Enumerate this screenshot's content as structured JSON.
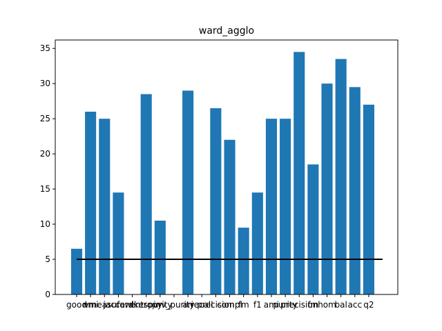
{
  "chart_data": {
    "type": "bar",
    "title": "ward_agglo",
    "xlabel": "",
    "ylabel": "",
    "ylim": [
      0,
      36.2
    ],
    "yticks": [
      0,
      5,
      10,
      15,
      20,
      25,
      30,
      35
    ],
    "categories": [
      "good",
      "nmi",
      "ami",
      "jaccard",
      "fowlkes",
      "entropy",
      "purity",
      "inv_purity",
      "ari",
      "recall",
      "precision",
      "comp",
      "fm",
      "f1",
      "ami2",
      "purity2",
      "precision2",
      "fm2",
      "hom",
      "bal",
      "comp2",
      "q2"
    ],
    "xtick_labels": [
      "good",
      "nmi",
      "vmeasure",
      "jaccard",
      "fowlkes",
      "entropy",
      "purity",
      "inv_purity",
      "ari",
      "recall",
      "precision",
      "compl",
      "fm",
      "f1",
      "ami",
      "purity",
      "precision",
      "fm",
      "hom",
      "bal",
      "acc",
      "q2"
    ],
    "values": [
      6.5,
      26,
      25,
      14.5,
      0,
      28.5,
      10.5,
      0,
      29,
      0,
      26.5,
      22,
      9.5,
      14.5,
      25,
      25,
      34.5,
      18.5,
      30,
      33.5,
      29.5,
      27
    ],
    "bar_color": "#1f77b4",
    "reference_line": {
      "y": 5,
      "color": "#000000"
    },
    "grid": false,
    "legend": "none"
  }
}
